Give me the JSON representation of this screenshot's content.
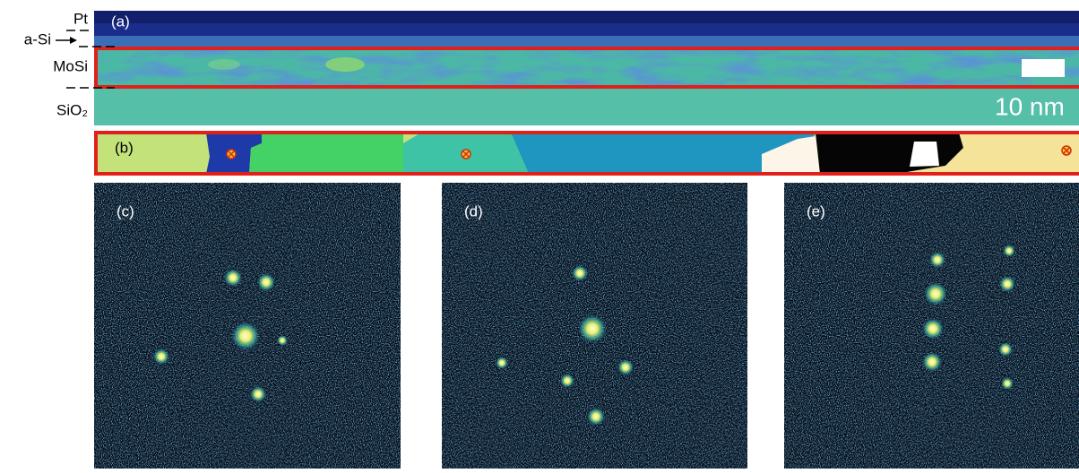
{
  "labels": {
    "pt": "Pt",
    "a_si": "a-Si",
    "mosi": "MoSi",
    "sio2": "SiO₂"
  },
  "panels": {
    "a": "(a)",
    "b": "(b)",
    "c": "(c)",
    "d": "(d)",
    "e": "(e)"
  },
  "scale_bar": "10 nm"
}
